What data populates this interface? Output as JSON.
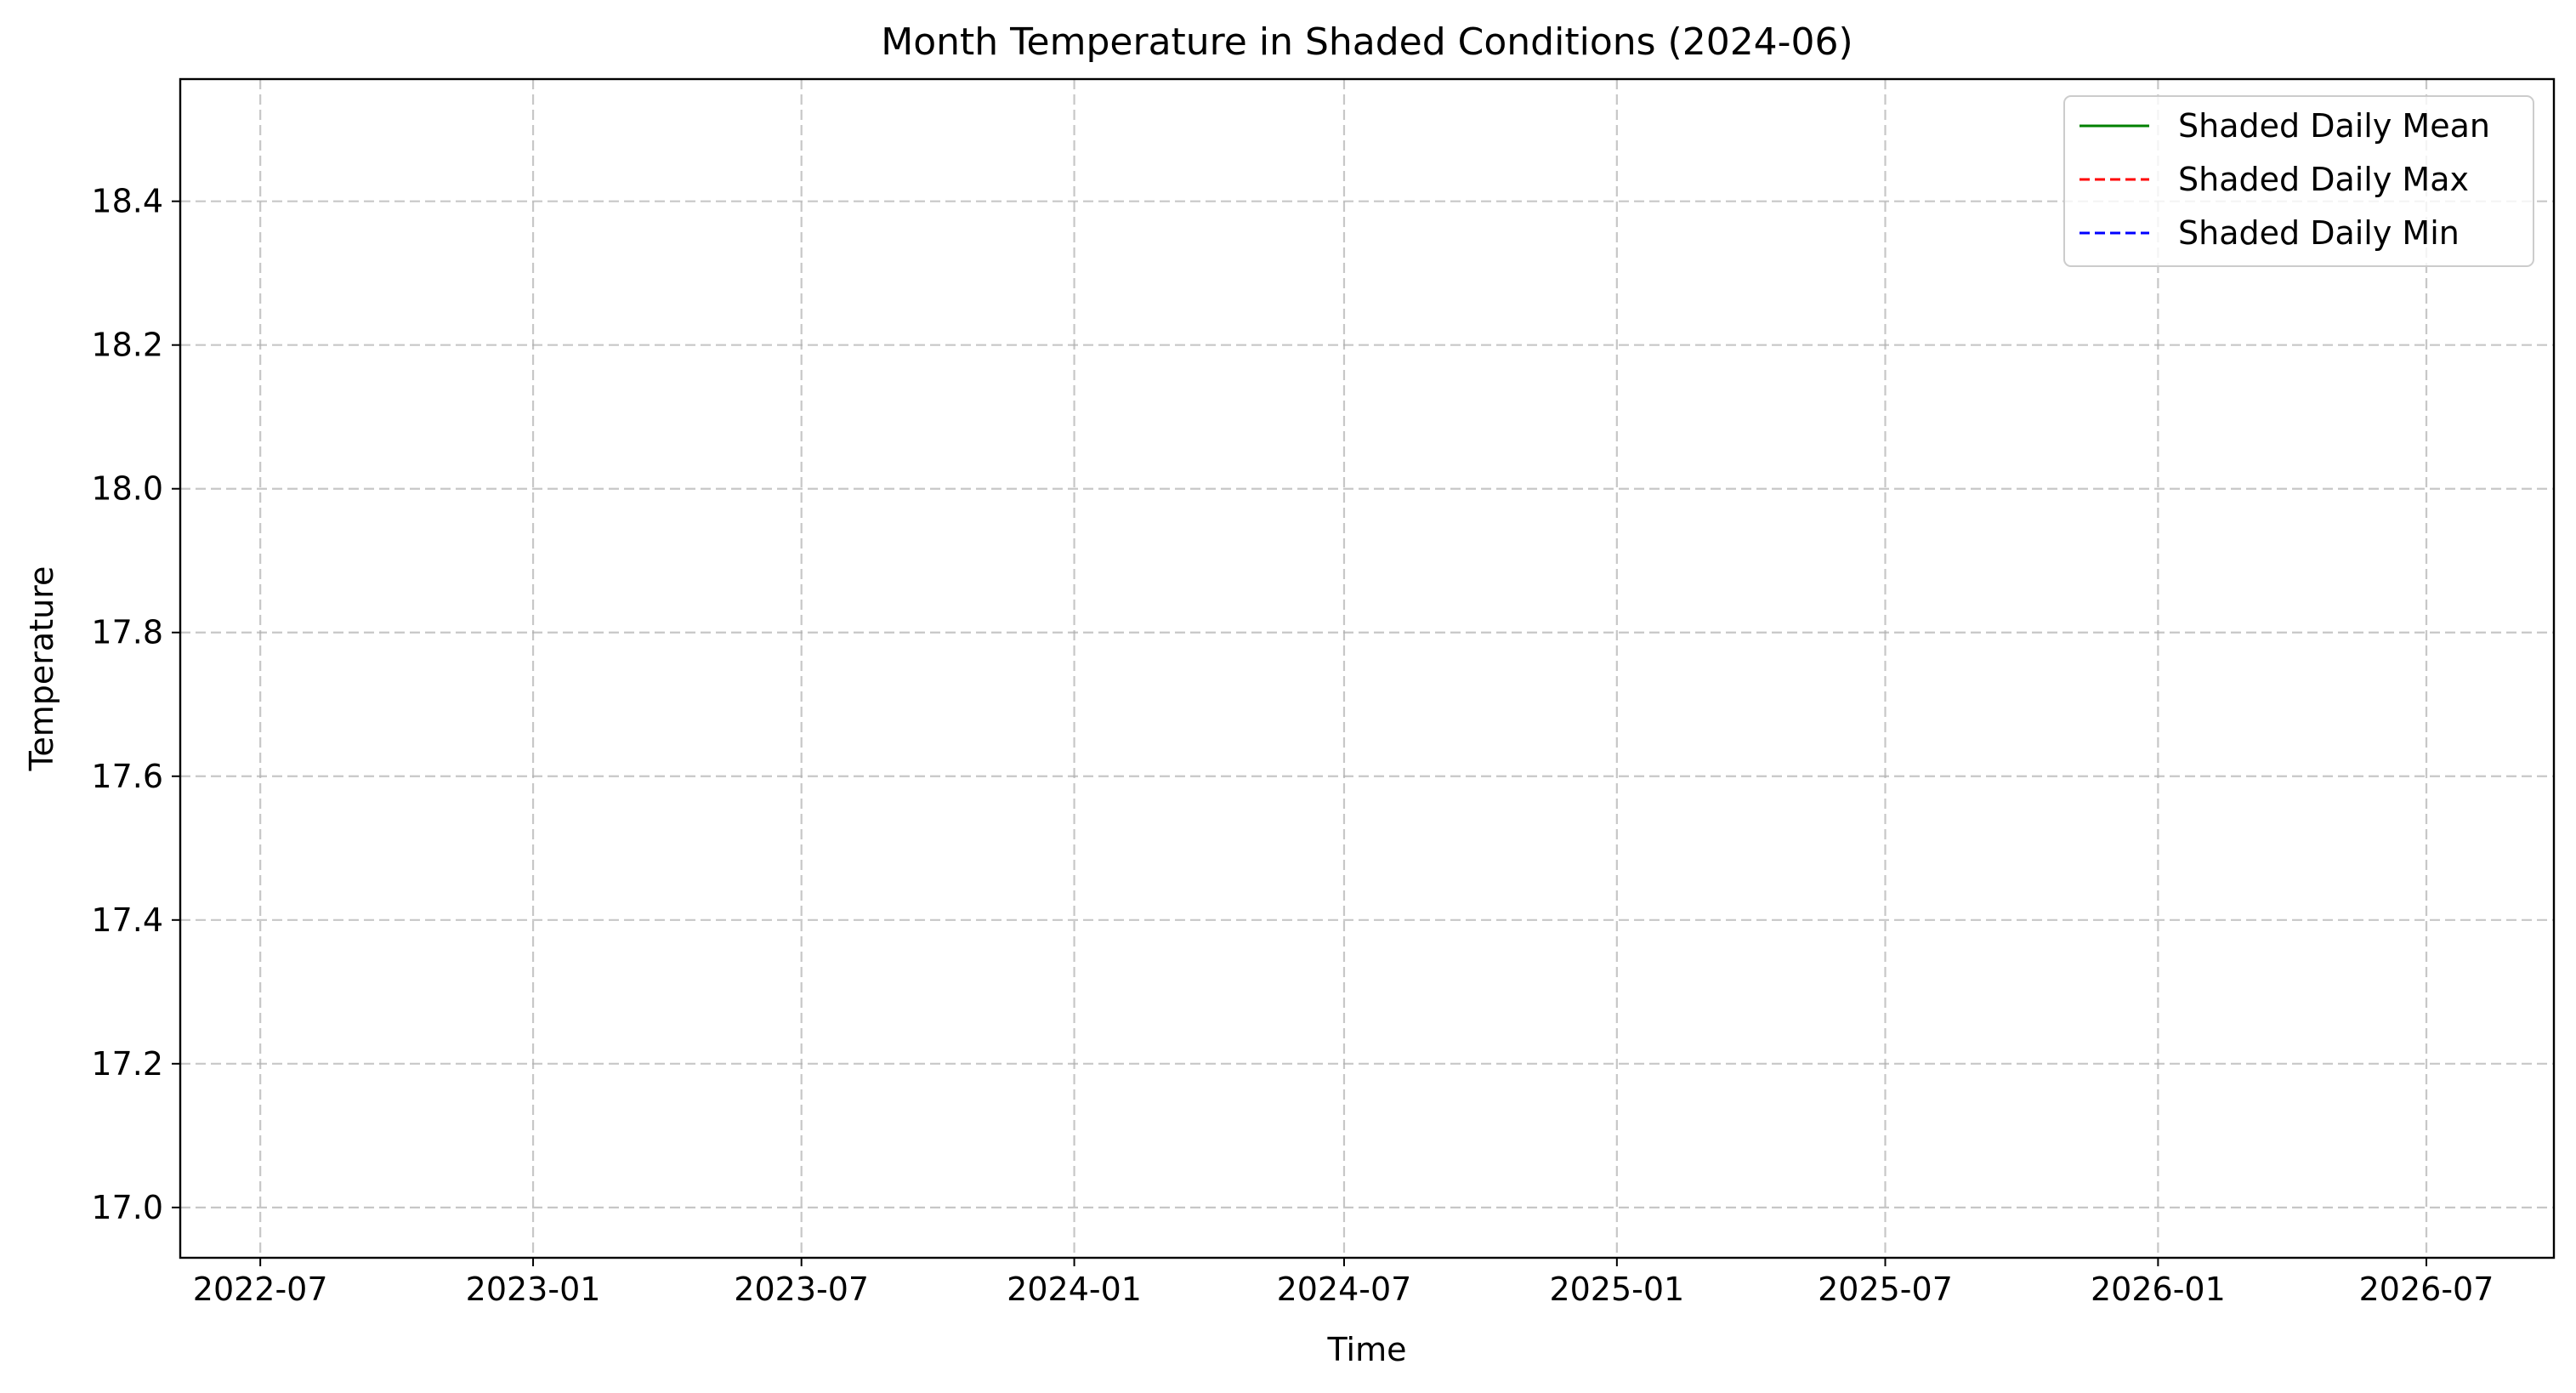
{
  "chart_data": {
    "type": "line",
    "title": "Month Temperature in Shaded Conditions (2024-06)",
    "xlabel": "Time",
    "ylabel": "Temperature",
    "x_ticks": [
      "2022-07",
      "2023-01",
      "2023-07",
      "2024-01",
      "2024-07",
      "2025-01",
      "2025-07",
      "2026-01",
      "2026-07"
    ],
    "xlim": [
      "2022-05-08",
      "2026-09-25"
    ],
    "y_ticks": [
      "17.0",
      "17.2",
      "17.4",
      "17.6",
      "17.8",
      "18.0",
      "18.2",
      "18.4"
    ],
    "ylim": [
      16.93,
      18.57
    ],
    "grid": true,
    "legend_position": "upper right",
    "series": [
      {
        "name": "Shaded Daily Mean",
        "color": "#008000",
        "linestyle": "solid",
        "values": []
      },
      {
        "name": "Shaded Daily Max",
        "color": "#ff0000",
        "linestyle": "dashed",
        "values": []
      },
      {
        "name": "Shaded Daily Min",
        "color": "#0000ff",
        "linestyle": "dashed",
        "values": []
      }
    ]
  }
}
